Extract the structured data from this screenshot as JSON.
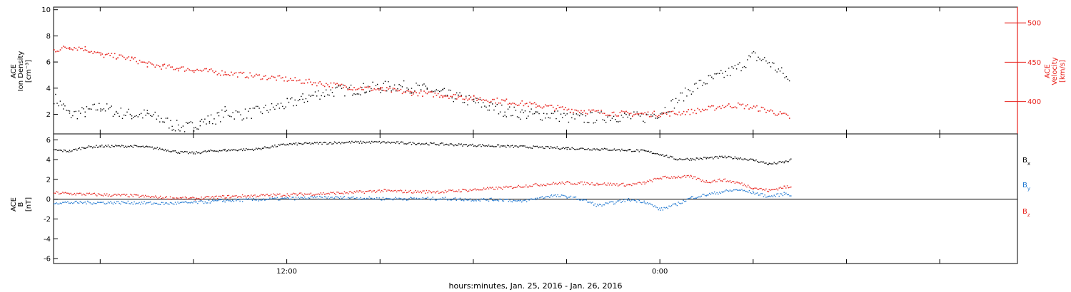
{
  "chart_data": [
    {
      "panel": "top",
      "type": "scatter",
      "instrument": "ACE",
      "left_axis": {
        "label_lines": [
          "ACE",
          "Ion Density",
          "[cm⁻³]"
        ],
        "ticks": [
          2,
          4,
          6,
          8,
          10
        ],
        "range": [
          0.5,
          10.2
        ]
      },
      "right_axis": {
        "label_lines": [
          "ACE",
          "Velocity",
          "[km/s]"
        ],
        "ticks": [
          400,
          450,
          500
        ],
        "range": [
          359,
          520
        ],
        "color": "#e8231d"
      },
      "x_ticks": [
        "12:00",
        "0:00"
      ],
      "series": [
        {
          "axis": "left",
          "color": "#000000",
          "points": [
            [
              -7.5,
              3.3
            ],
            [
              -7.2,
              2.6
            ],
            [
              -7,
              2.0
            ],
            [
              -6.5,
              2.2
            ],
            [
              -6,
              2.6
            ],
            [
              -5.5,
              2.2
            ],
            [
              -5,
              2.0
            ],
            [
              -4.5,
              2.0
            ],
            [
              -4,
              1.6
            ],
            [
              -3.7,
              1.2
            ],
            [
              -3.5,
              1.1
            ],
            [
              -3.2,
              1.0
            ],
            [
              -3,
              1.2
            ],
            [
              -2.8,
              1.4
            ],
            [
              -2.5,
              1.6
            ],
            [
              -2.2,
              1.8
            ],
            [
              -2,
              2.2
            ],
            [
              -1.5,
              2.0
            ],
            [
              -1,
              2.2
            ],
            [
              -0.5,
              2.5
            ],
            [
              0,
              2.8
            ],
            [
              0.5,
              3.2
            ],
            [
              1,
              3.6
            ],
            [
              1.5,
              3.8
            ],
            [
              2,
              3.9
            ],
            [
              2.5,
              4.0
            ],
            [
              3,
              4.1
            ],
            [
              3.5,
              4.2
            ],
            [
              4,
              4.1
            ],
            [
              4.5,
              3.9
            ],
            [
              5,
              3.6
            ],
            [
              5.5,
              3.3
            ],
            [
              6,
              3.0
            ],
            [
              6.5,
              2.6
            ],
            [
              7,
              2.3
            ],
            [
              7.5,
              2.1
            ],
            [
              8,
              2.0
            ],
            [
              8.5,
              2.0
            ],
            [
              9,
              1.8
            ],
            [
              9.5,
              1.7
            ],
            [
              10,
              1.8
            ],
            [
              10.5,
              1.9
            ],
            [
              11,
              1.8
            ],
            [
              11.5,
              1.8
            ],
            [
              12,
              2.2
            ],
            [
              12.5,
              3.0
            ],
            [
              13,
              4.0
            ],
            [
              13.5,
              4.6
            ],
            [
              14,
              5.0
            ],
            [
              14.5,
              5.6
            ],
            [
              15,
              6.5
            ],
            [
              15.5,
              6.0
            ],
            [
              16,
              5.0
            ],
            [
              16.2,
              4.3
            ]
          ]
        },
        {
          "axis": "right",
          "color": "#e8231d",
          "points": [
            [
              -7.5,
              466
            ],
            [
              -7,
              470
            ],
            [
              -6.5,
              468
            ],
            [
              -6,
              460
            ],
            [
              -5.5,
              458
            ],
            [
              -5,
              455
            ],
            [
              -4.5,
              448
            ],
            [
              -4,
              445
            ],
            [
              -3.5,
              443
            ],
            [
              -3,
              441
            ],
            [
              -2,
              437
            ],
            [
              -1,
              433
            ],
            [
              0,
              429
            ],
            [
              1,
              424
            ],
            [
              2,
              419
            ],
            [
              3,
              416
            ],
            [
              4,
              412
            ],
            [
              5,
              409
            ],
            [
              6,
              405
            ],
            [
              7,
              401
            ],
            [
              8,
              396
            ],
            [
              9,
              391
            ],
            [
              10,
              387
            ],
            [
              11,
              385
            ],
            [
              12,
              385
            ],
            [
              12.5,
              386
            ],
            [
              13,
              388
            ],
            [
              13.5,
              391
            ],
            [
              14,
              395
            ],
            [
              14.5,
              396
            ],
            [
              15,
              393
            ],
            [
              15.5,
              389
            ],
            [
              16,
              383
            ],
            [
              16.2,
              380
            ]
          ]
        }
      ]
    },
    {
      "panel": "bottom",
      "type": "scatter",
      "instrument": "ACE",
      "left_axis": {
        "label_lines": [
          "ACE",
          "B",
          "[nT]"
        ],
        "ticks": [
          -6,
          -4,
          -2,
          0,
          2,
          4,
          6
        ],
        "range": [
          -6.5,
          6.6
        ]
      },
      "x_ticks": [
        "12:00",
        "0:00"
      ],
      "series": [
        {
          "name": "B",
          "subscript": "x",
          "color": "#000000",
          "points": [
            [
              -7.5,
              5.0
            ],
            [
              -7,
              4.9
            ],
            [
              -6.5,
              5.3
            ],
            [
              -6,
              5.4
            ],
            [
              -5,
              5.4
            ],
            [
              -4.5,
              5.3
            ],
            [
              -4,
              5.1
            ],
            [
              -3.5,
              4.8
            ],
            [
              -3,
              4.7
            ],
            [
              -2.5,
              4.9
            ],
            [
              -2,
              5.0
            ],
            [
              -1,
              5.1
            ],
            [
              0,
              5.6
            ],
            [
              1,
              5.7
            ],
            [
              2,
              5.8
            ],
            [
              3,
              5.8
            ],
            [
              4,
              5.7
            ],
            [
              5,
              5.6
            ],
            [
              6,
              5.5
            ],
            [
              7,
              5.4
            ],
            [
              8,
              5.3
            ],
            [
              9,
              5.2
            ],
            [
              10,
              5.1
            ],
            [
              11,
              5.0
            ],
            [
              11.5,
              4.9
            ],
            [
              12,
              4.6
            ],
            [
              12.5,
              4.1
            ],
            [
              13,
              4.1
            ],
            [
              13.5,
              4.2
            ],
            [
              14,
              4.3
            ],
            [
              14.5,
              4.2
            ],
            [
              15,
              4.0
            ],
            [
              15.5,
              3.6
            ],
            [
              16,
              3.8
            ],
            [
              16.2,
              4.0
            ]
          ]
        },
        {
          "name": "B",
          "subscript": "y",
          "color": "#1f78d1",
          "points": [
            [
              -7.5,
              -0.3
            ],
            [
              -6,
              -0.3
            ],
            [
              -5,
              -0.3
            ],
            [
              -4,
              -0.4
            ],
            [
              -3,
              -0.3
            ],
            [
              -2,
              -0.1
            ],
            [
              -1,
              0.0
            ],
            [
              0,
              0.1
            ],
            [
              1,
              0.2
            ],
            [
              2,
              0.2
            ],
            [
              3,
              0.1
            ],
            [
              4,
              0.1
            ],
            [
              5,
              0.1
            ],
            [
              6,
              0.0
            ],
            [
              7,
              0.0
            ],
            [
              7.5,
              -0.2
            ],
            [
              8,
              0.1
            ],
            [
              8.5,
              0.4
            ],
            [
              9,
              0.3
            ],
            [
              9.5,
              0.0
            ],
            [
              10,
              -0.6
            ],
            [
              10.5,
              -0.3
            ],
            [
              11,
              0.0
            ],
            [
              11.5,
              -0.2
            ],
            [
              12,
              -1.0
            ],
            [
              12.5,
              -0.5
            ],
            [
              13,
              0.2
            ],
            [
              13.5,
              0.5
            ],
            [
              14,
              0.8
            ],
            [
              14.5,
              1.0
            ],
            [
              15,
              0.7
            ],
            [
              15.5,
              0.3
            ],
            [
              16,
              0.6
            ],
            [
              16.2,
              0.5
            ]
          ]
        },
        {
          "name": "B",
          "subscript": "z",
          "color": "#e8231d",
          "points": [
            [
              -7.5,
              0.7
            ],
            [
              -7,
              0.6
            ],
            [
              -6,
              0.5
            ],
            [
              -5,
              0.4
            ],
            [
              -4,
              0.2
            ],
            [
              -3,
              0.1
            ],
            [
              -2,
              0.3
            ],
            [
              -1,
              0.4
            ],
            [
              0,
              0.5
            ],
            [
              1,
              0.6
            ],
            [
              2,
              0.7
            ],
            [
              3,
              0.9
            ],
            [
              4,
              0.8
            ],
            [
              5,
              0.8
            ],
            [
              6,
              1.0
            ],
            [
              7,
              1.2
            ],
            [
              8,
              1.5
            ],
            [
              9,
              1.7
            ],
            [
              10,
              1.6
            ],
            [
              11,
              1.5
            ],
            [
              11.5,
              1.7
            ],
            [
              12,
              2.2
            ],
            [
              12.5,
              2.3
            ],
            [
              13,
              2.3
            ],
            [
              13.5,
              1.8
            ],
            [
              14,
              2.0
            ],
            [
              14.5,
              1.7
            ],
            [
              15,
              1.2
            ],
            [
              15.5,
              0.9
            ],
            [
              16,
              1.3
            ],
            [
              16.2,
              1.2
            ]
          ]
        }
      ]
    }
  ],
  "x_axis_label": "hours:minutes, Jan. 25, 2016 - Jan. 26, 2016",
  "x_range_hours": [
    -7.5,
    23.5
  ]
}
